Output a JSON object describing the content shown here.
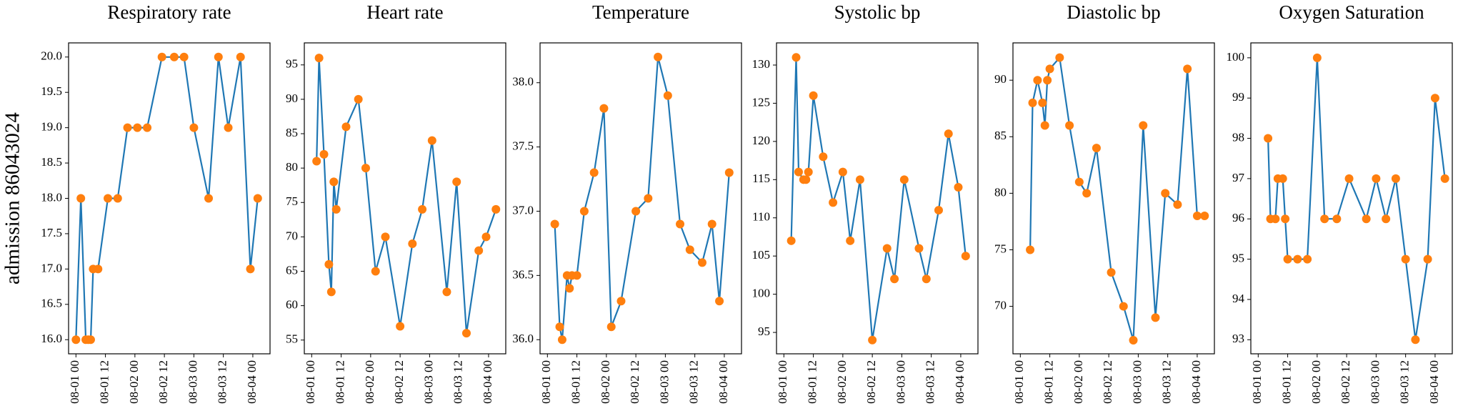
{
  "chart_data": [
    {
      "type": "line",
      "title": "Respiratory rate",
      "ylabel": "admission 86043024",
      "color": "#1f77b4",
      "marker_color": "#ff7f0e",
      "x": [
        "08-01 00",
        "08-01 02",
        "08-01 04",
        "08-01 05",
        "08-01 06",
        "08-01 07",
        "08-01 09",
        "08-01 13",
        "08-01 17",
        "08-01 21",
        "08-02 01",
        "08-02 05",
        "08-02 11",
        "08-02 16",
        "08-02 20",
        "08-03 00",
        "08-03 06",
        "08-03 10",
        "08-03 14",
        "08-03 19",
        "08-03 23",
        "08-04 02"
      ],
      "values": [
        16,
        18,
        16,
        16,
        16,
        17,
        17,
        18,
        18,
        19,
        19,
        19,
        20,
        20,
        20,
        19,
        18,
        20,
        19,
        20,
        17,
        18
      ],
      "xlim": [
        "07-31 21",
        "08-04 07"
      ],
      "xticks": [
        "08-01 00",
        "08-01 12",
        "08-02 00",
        "08-02 12",
        "08-03 00",
        "08-03 12",
        "08-04 00"
      ],
      "ylim": [
        15.8,
        20.2
      ],
      "yticks": [
        {
          "value": 16,
          "label": "16.0"
        },
        {
          "value": 16.5,
          "label": "16.5"
        },
        {
          "value": 17,
          "label": "17.0"
        },
        {
          "value": 17.5,
          "label": "17.5"
        },
        {
          "value": 18,
          "label": "18.0"
        },
        {
          "value": 18.5,
          "label": "18.5"
        },
        {
          "value": 19,
          "label": "19.0"
        },
        {
          "value": 19.5,
          "label": "19.5"
        },
        {
          "value": 20,
          "label": "20.0"
        }
      ]
    },
    {
      "type": "line",
      "title": "Heart rate",
      "color": "#1f77b4",
      "marker_color": "#ff7f0e",
      "x": [
        "08-01 02",
        "08-01 03",
        "08-01 05",
        "08-01 07",
        "08-01 08",
        "08-01 09",
        "08-01 10",
        "08-01 14",
        "08-01 19",
        "08-01 22",
        "08-02 02",
        "08-02 06",
        "08-02 12",
        "08-02 17",
        "08-02 21",
        "08-03 01",
        "08-03 07",
        "08-03 11",
        "08-03 15",
        "08-03 20",
        "08-03 23",
        "08-04 03"
      ],
      "values": [
        81,
        96,
        82,
        66,
        62,
        78,
        74,
        86,
        90,
        80,
        65,
        70,
        57,
        69,
        74,
        84,
        62,
        78,
        56,
        68,
        70,
        74
      ],
      "xlim": [
        "07-31 21",
        "08-04 07"
      ],
      "xticks": [
        "08-01 00",
        "08-01 12",
        "08-02 00",
        "08-02 12",
        "08-03 00",
        "08-03 12",
        "08-04 00"
      ],
      "ylim": [
        53,
        98.2
      ],
      "yticks": [
        55,
        60,
        65,
        70,
        75,
        80,
        85,
        90,
        95
      ]
    },
    {
      "type": "line",
      "title": "Temperature",
      "color": "#1f77b4",
      "marker_color": "#ff7f0e",
      "x": [
        "08-01 03",
        "08-01 05",
        "08-01 06",
        "08-01 08",
        "08-01 09",
        "08-01 10",
        "08-01 12",
        "08-01 15",
        "08-01 19",
        "08-01 23",
        "08-02 02",
        "08-02 06",
        "08-02 12",
        "08-02 17",
        "08-02 21",
        "08-03 01",
        "08-03 06",
        "08-03 10",
        "08-03 15",
        "08-03 19",
        "08-03 22",
        "08-04 02"
      ],
      "values": [
        36.9,
        36.1,
        36.0,
        36.5,
        36.4,
        36.5,
        36.5,
        37.0,
        37.3,
        37.8,
        36.1,
        36.3,
        37.0,
        37.1,
        38.2,
        37.9,
        36.9,
        36.7,
        36.6,
        36.9,
        36.3,
        37.3
      ],
      "xlim": [
        "07-31 21",
        "08-04 07"
      ],
      "xticks": [
        "08-01 00",
        "08-01 12",
        "08-02 00",
        "08-02 12",
        "08-03 00",
        "08-03 12",
        "08-04 00"
      ],
      "ylim": [
        35.89,
        38.31
      ],
      "yticks": [
        {
          "value": 36,
          "label": "36.0"
        },
        {
          "value": 36.5,
          "label": "36.5"
        },
        {
          "value": 37,
          "label": "37.0"
        },
        {
          "value": 37.5,
          "label": "37.5"
        },
        {
          "value": 38,
          "label": "38.0"
        }
      ]
    },
    {
      "type": "line",
      "title": "Systolic bp",
      "color": "#1f77b4",
      "marker_color": "#ff7f0e",
      "x": [
        "08-01 03",
        "08-01 05",
        "08-01 06",
        "08-01 08",
        "08-01 09",
        "08-01 10",
        "08-01 12",
        "08-01 16",
        "08-01 20",
        "08-02 00",
        "08-02 03",
        "08-02 07",
        "08-02 12",
        "08-02 18",
        "08-02 21",
        "08-03 01",
        "08-03 07",
        "08-03 10",
        "08-03 15",
        "08-03 19",
        "08-03 23",
        "08-04 02"
      ],
      "values": [
        107,
        131,
        116,
        115,
        115,
        116,
        126,
        118,
        112,
        116,
        107,
        115,
        94,
        106,
        102,
        115,
        106,
        102,
        111,
        121,
        114,
        105
      ],
      "xlim": [
        "07-31 21",
        "08-04 07"
      ],
      "xticks": [
        "08-01 00",
        "08-01 12",
        "08-02 00",
        "08-02 12",
        "08-03 00",
        "08-03 12",
        "08-04 00"
      ],
      "ylim": [
        92.2,
        132.9
      ],
      "yticks": [
        95,
        100,
        105,
        110,
        115,
        120,
        125,
        130
      ]
    },
    {
      "type": "line",
      "title": "Diastolic bp",
      "color": "#1f77b4",
      "marker_color": "#ff7f0e",
      "x": [
        "08-01 04",
        "08-01 05",
        "08-01 07",
        "08-01 09",
        "08-01 10",
        "08-01 11",
        "08-01 12",
        "08-01 16",
        "08-01 20",
        "08-02 00",
        "08-02 03",
        "08-02 07",
        "08-02 13",
        "08-02 18",
        "08-02 22",
        "08-03 02",
        "08-03 07",
        "08-03 11",
        "08-03 16",
        "08-03 20",
        "08-04 00",
        "08-04 03"
      ],
      "values": [
        75,
        88,
        90,
        88,
        86,
        90,
        91,
        92,
        86,
        81,
        80,
        84,
        73,
        70,
        67,
        86,
        69,
        80,
        79,
        91,
        78,
        78
      ],
      "xlim": [
        "07-31 21",
        "08-04 07"
      ],
      "xticks": [
        "08-01 00",
        "08-01 12",
        "08-02 00",
        "08-02 12",
        "08-03 00",
        "08-03 12",
        "08-04 00"
      ],
      "ylim": [
        65.8,
        93.3
      ],
      "yticks": [
        70,
        75,
        80,
        85,
        90
      ]
    },
    {
      "type": "line",
      "title": "Oxygen Saturation",
      "color": "#1f77b4",
      "marker_color": "#ff7f0e",
      "x": [
        "08-01 04",
        "08-01 05",
        "08-01 07",
        "08-01 08",
        "08-01 10",
        "08-01 11",
        "08-01 12",
        "08-01 16",
        "08-01 20",
        "08-02 00",
        "08-02 03",
        "08-02 08",
        "08-02 13",
        "08-02 20",
        "08-03 00",
        "08-03 04",
        "08-03 08",
        "08-03 12",
        "08-03 16",
        "08-03 21",
        "08-04 00",
        "08-04 04"
      ],
      "values": [
        98,
        96,
        96,
        97,
        97,
        96,
        95,
        95,
        95,
        100,
        96,
        96,
        97,
        96,
        97,
        96,
        97,
        95,
        93,
        95,
        99,
        97
      ],
      "xlim": [
        "07-31 21",
        "08-04 07"
      ],
      "xticks": [
        "08-01 00",
        "08-01 12",
        "08-02 00",
        "08-02 12",
        "08-03 00",
        "08-03 12",
        "08-04 00"
      ],
      "ylim": [
        92.65,
        100.37
      ],
      "yticks": [
        93,
        94,
        95,
        96,
        97,
        98,
        99,
        100
      ]
    }
  ]
}
